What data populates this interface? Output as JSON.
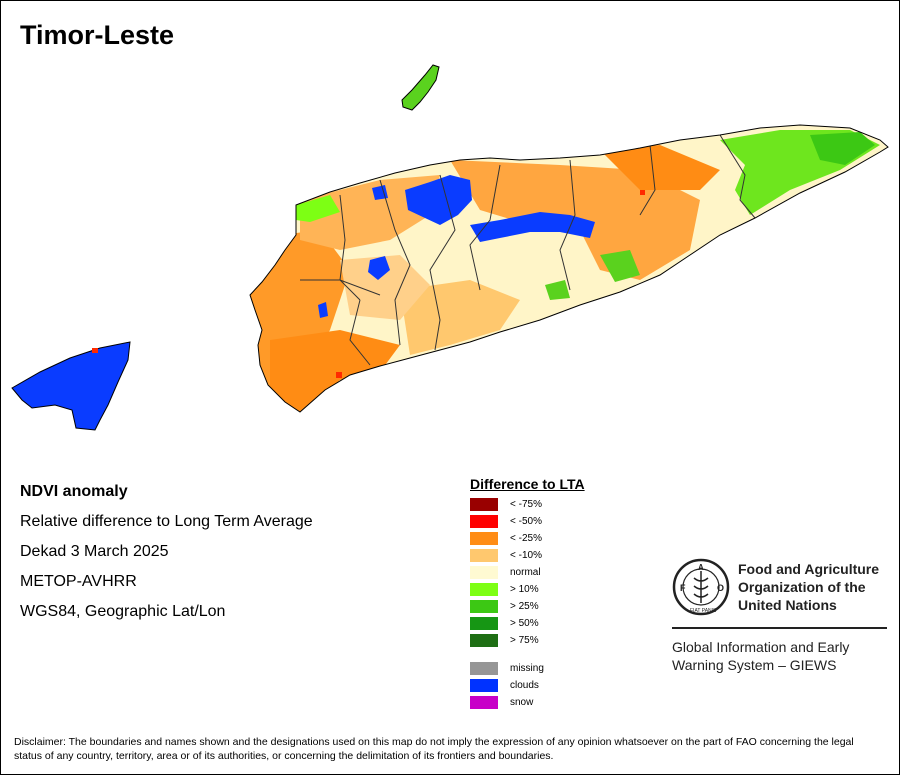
{
  "map": {
    "title": "Timor-Leste"
  },
  "info": {
    "heading": "NDVI anomaly",
    "line1": "Relative difference to Long Term Average",
    "line2": "Dekad 3 March 2025",
    "line3": "METOP-AVHRR",
    "line4": "WGS84, Geographic Lat/Lon"
  },
  "legend": {
    "title": "Difference to LTA",
    "items": [
      {
        "label": "< -75%",
        "color": "#990000"
      },
      {
        "label": "< -50%",
        "color": "#ff0000"
      },
      {
        "label": "< -25%",
        "color": "#ff8c14"
      },
      {
        "label": "< -10%",
        "color": "#ffc86e"
      },
      {
        "label": "normal",
        "color": "#fffad2"
      },
      {
        "label": "> 10%",
        "color": "#7dff14"
      },
      {
        "label": "> 25%",
        "color": "#3cc814"
      },
      {
        "label": "> 50%",
        "color": "#169614"
      },
      {
        "label": "> 75%",
        "color": "#1e6e14"
      }
    ],
    "other": [
      {
        "label": "missing",
        "color": "#969696"
      },
      {
        "label": "clouds",
        "color": "#0032ff"
      },
      {
        "label": "snow",
        "color": "#c800c8"
      }
    ]
  },
  "org": {
    "name_line1": "Food and Agriculture",
    "name_line2": "Organization of the",
    "name_line3": "United Nations",
    "logo_text": "FAO",
    "logo_motto": "FIAT PANIS",
    "system_line1": "Global Information and Early",
    "system_line2": "Warning System – GIEWS"
  },
  "disclaimer": "Disclaimer: The boundaries and names shown and the designations used on this map do not imply the expression of any opinion whatsoever on the part of FAO concerning the legal status of any country, territory, area or of its authorities, or concerning the delimitation of its frontiers and boundaries."
}
